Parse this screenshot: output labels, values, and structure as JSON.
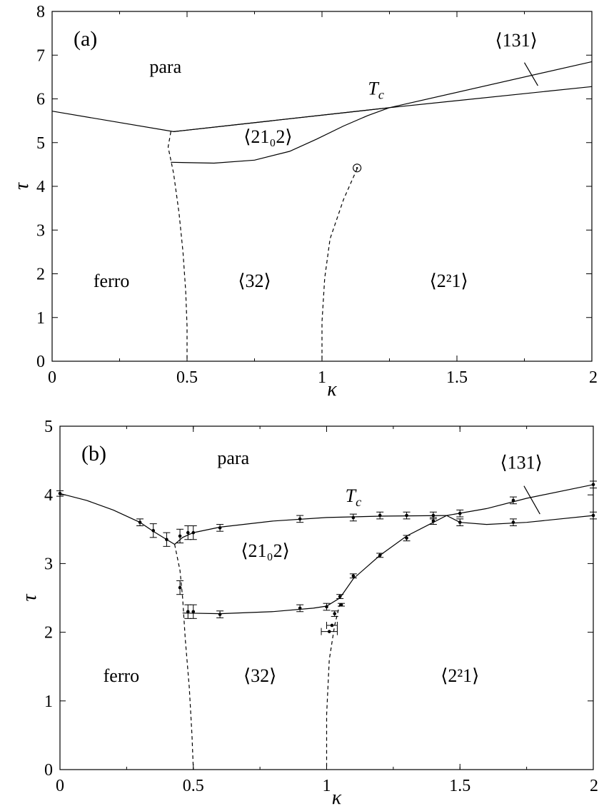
{
  "chart_data": [
    {
      "type": "line",
      "panel_label": "(a)",
      "xlabel": "κ",
      "ylabel": "τ",
      "xlim": [
        0,
        2
      ],
      "ylim": [
        0,
        8
      ],
      "xticks": [
        "0",
        "0.5",
        "1",
        "1.5",
        "2"
      ],
      "yticks": [
        "0",
        "1",
        "2",
        "3",
        "4",
        "5",
        "6",
        "7",
        "8"
      ],
      "xtick_values": [
        0,
        0.5,
        1,
        1.5,
        2
      ],
      "ytick_values": [
        0,
        1,
        2,
        3,
        4,
        5,
        6,
        7,
        8
      ],
      "region_labels": [
        {
          "text": "para",
          "x": 0.42,
          "y": 6.6
        },
        {
          "text": "ferro",
          "x": 0.22,
          "y": 1.7
        },
        {
          "text": "⟨32⟩",
          "x": 0.75,
          "y": 1.7
        },
        {
          "text": "⟨2²1⟩",
          "x": 1.47,
          "y": 1.7
        },
        {
          "text": "⟨21₀2⟩",
          "x": 0.8,
          "y": 5.0
        },
        {
          "text": "T_c",
          "x": 1.2,
          "y": 6.1
        },
        {
          "text": "⟨131⟩",
          "x": 1.72,
          "y": 7.2
        }
      ],
      "series": [
        {
          "style": "solid",
          "x": [
            0,
            0.45,
            1.25,
            2
          ],
          "y": [
            5.72,
            5.25,
            5.8,
            6.85
          ]
        },
        {
          "style": "solid",
          "x": [
            0.45,
            1.25,
            2
          ],
          "y": [
            5.25,
            5.8,
            6.28
          ]
        },
        {
          "style": "solid",
          "x": [
            0.44,
            0.6,
            0.75,
            0.88,
            0.98,
            1.08,
            1.17,
            1.25
          ],
          "y": [
            4.55,
            4.53,
            4.6,
            4.8,
            5.08,
            5.38,
            5.62,
            5.8
          ]
        },
        {
          "style": "dashed",
          "x": [
            0.44,
            0.43,
            0.45,
            0.47,
            0.485,
            0.495,
            0.5,
            0.5
          ],
          "y": [
            5.25,
            4.9,
            4.3,
            3.4,
            2.5,
            1.6,
            0.8,
            0
          ]
        },
        {
          "style": "dashed",
          "x": [
            1.13,
            1.08,
            1.03,
            1.01,
            1.0,
            1.0
          ],
          "y": [
            4.4,
            3.7,
            2.8,
            1.9,
            0.9,
            0
          ]
        },
        {
          "style": "solid",
          "x": [
            1.75,
            1.8
          ],
          "y": [
            6.83,
            6.3
          ]
        }
      ],
      "markers": [
        {
          "shape": "open-circle-dot",
          "x": 1.13,
          "y": 4.42
        }
      ]
    },
    {
      "type": "line",
      "panel_label": "(b)",
      "xlabel": "κ",
      "ylabel": "τ",
      "xlim": [
        0,
        2
      ],
      "ylim": [
        0,
        5
      ],
      "xticks": [
        "0",
        "0.5",
        "1",
        "1.5",
        "2"
      ],
      "yticks": [
        "0",
        "1",
        "2",
        "3",
        "4",
        "5"
      ],
      "xtick_values": [
        0,
        0.5,
        1,
        1.5,
        2
      ],
      "ytick_values": [
        0,
        1,
        2,
        3,
        4,
        5
      ],
      "region_labels": [
        {
          "text": "para",
          "x": 0.65,
          "y": 4.45
        },
        {
          "text": "ferro",
          "x": 0.23,
          "y": 1.28
        },
        {
          "text": "⟨32⟩",
          "x": 0.75,
          "y": 1.28
        },
        {
          "text": "⟨2²1⟩",
          "x": 1.5,
          "y": 1.28
        },
        {
          "text": "⟨21₀2⟩",
          "x": 0.77,
          "y": 3.1
        },
        {
          "text": "T_c",
          "x": 1.1,
          "y": 3.9
        },
        {
          "text": "⟨131⟩",
          "x": 1.73,
          "y": 4.38
        }
      ],
      "series": [
        {
          "style": "solid",
          "x": [
            0,
            0.1,
            0.2,
            0.3,
            0.35,
            0.4,
            0.43
          ],
          "y": [
            4.02,
            3.92,
            3.78,
            3.6,
            3.47,
            3.35,
            3.28
          ]
        },
        {
          "style": "solid",
          "x": [
            0.43,
            0.46,
            0.5,
            0.6,
            0.8,
            1.0,
            1.2,
            1.45
          ],
          "y": [
            3.28,
            3.38,
            3.45,
            3.53,
            3.62,
            3.67,
            3.69,
            3.7
          ]
        },
        {
          "style": "solid",
          "x": [
            1.45,
            1.6,
            1.75,
            2.0
          ],
          "y": [
            3.7,
            3.8,
            3.95,
            4.15
          ]
        },
        {
          "style": "solid",
          "x": [
            1.45,
            1.5,
            1.6,
            1.75,
            2.0
          ],
          "y": [
            3.7,
            3.6,
            3.57,
            3.6,
            3.7
          ]
        },
        {
          "style": "solid",
          "x": [
            0.46,
            0.6,
            0.8,
            0.95,
            1.0,
            1.05,
            1.1,
            1.2,
            1.3,
            1.4,
            1.45
          ],
          "y": [
            2.28,
            2.27,
            2.3,
            2.35,
            2.38,
            2.5,
            2.78,
            3.12,
            3.4,
            3.6,
            3.7
          ]
        },
        {
          "style": "dashed",
          "x": [
            0.43,
            0.45,
            0.46,
            0.47,
            0.485,
            0.495,
            0.5
          ],
          "y": [
            3.28,
            2.9,
            2.5,
            1.9,
            1.2,
            0.5,
            0
          ]
        },
        {
          "style": "dashed",
          "x": [
            1.05,
            1.03,
            1.01,
            1.0,
            1.0
          ],
          "y": [
            2.42,
            2.1,
            1.6,
            0.8,
            0
          ]
        },
        {
          "style": "solid",
          "x": [
            1.74,
            1.8
          ],
          "y": [
            4.13,
            3.72
          ]
        }
      ],
      "points": [
        {
          "x": 0.0,
          "y": 4.02,
          "ey": 0.04
        },
        {
          "x": 0.3,
          "y": 3.6,
          "ey": 0.05
        },
        {
          "x": 0.35,
          "y": 3.48,
          "ey": 0.1
        },
        {
          "x": 0.4,
          "y": 3.35,
          "ey": 0.1
        },
        {
          "x": 0.45,
          "y": 3.4,
          "ey": 0.1
        },
        {
          "x": 0.48,
          "y": 3.45,
          "ey": 0.1
        },
        {
          "x": 0.5,
          "y": 3.45,
          "ey": 0.1
        },
        {
          "x": 0.6,
          "y": 3.52,
          "ey": 0.05
        },
        {
          "x": 0.9,
          "y": 3.65,
          "ey": 0.05
        },
        {
          "x": 1.1,
          "y": 3.67,
          "ey": 0.05
        },
        {
          "x": 1.2,
          "y": 3.7,
          "ey": 0.05
        },
        {
          "x": 1.3,
          "y": 3.7,
          "ey": 0.05
        },
        {
          "x": 1.4,
          "y": 3.7,
          "ey": 0.05
        },
        {
          "x": 1.5,
          "y": 3.73,
          "ey": 0.05
        },
        {
          "x": 1.7,
          "y": 3.92,
          "ey": 0.05
        },
        {
          "x": 2.0,
          "y": 4.15,
          "ey": 0.05
        },
        {
          "x": 1.5,
          "y": 3.6,
          "ey": 0.05
        },
        {
          "x": 1.7,
          "y": 3.6,
          "ey": 0.05
        },
        {
          "x": 2.0,
          "y": 3.7,
          "ey": 0.05
        },
        {
          "x": 1.4,
          "y": 3.62,
          "ey": 0.05
        },
        {
          "x": 1.3,
          "y": 3.37,
          "ey": 0.04
        },
        {
          "x": 1.2,
          "y": 3.12,
          "ey": 0.03
        },
        {
          "x": 1.1,
          "y": 2.82,
          "ey": 0.03
        },
        {
          "x": 1.05,
          "y": 2.52,
          "ey": 0.03
        },
        {
          "x": 1.0,
          "y": 2.37,
          "ey": 0.05
        },
        {
          "x": 0.9,
          "y": 2.35,
          "ey": 0.05
        },
        {
          "x": 0.6,
          "y": 2.26,
          "ey": 0.05
        },
        {
          "x": 0.5,
          "y": 2.3,
          "ey": 0.1
        },
        {
          "x": 0.48,
          "y": 2.3,
          "ey": 0.1
        },
        {
          "x": 0.45,
          "y": 2.65,
          "ey": 0.1
        },
        {
          "x": 1.03,
          "y": 2.27,
          "ey": 0.04
        },
        {
          "x": 1.02,
          "y": 2.1,
          "ex": 0.02
        },
        {
          "x": 1.01,
          "y": 2.01,
          "ex": 0.03
        },
        {
          "x": 1.055,
          "y": 2.4,
          "ey": 0.02
        }
      ]
    }
  ]
}
